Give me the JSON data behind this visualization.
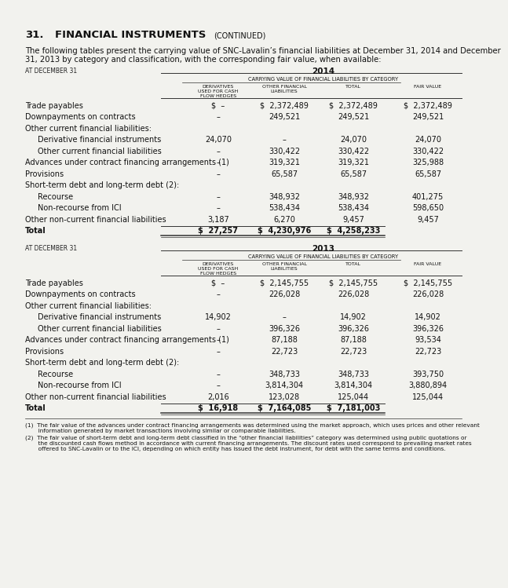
{
  "bg_color": "#f2f2ee",
  "title_num": "31.",
  "title_main": "FINANCIAL INSTRUMENTS",
  "title_sub": "(CONTINUED)",
  "intro_line1": "The following tables present the carrying value of SNC-Lavalin’s financial liabilities at December 31, 2014 and December",
  "intro_line2": "31, 2013 by category and classification, with the corresponding fair value, when available:",
  "table2014": {
    "year_label": "2014",
    "at_label": "AT DECEMBER 31",
    "carrying_label": "CARRYING VALUE OF FINANCIAL LIABILITIES BY CATEGORY",
    "col1_label": "DERIVATIVES\nUSED FOR CASH\nFLOW HEDGES",
    "col2_label": "OTHER FINANCIAL\nLIABILITIES",
    "col3_label": "TOTAL",
    "col4_label": "FAIR VALUE",
    "rows": [
      {
        "label": "Trade payables",
        "indent": 0,
        "c1": "$  –",
        "c2": "$  2,372,489",
        "c3": "$  2,372,489",
        "c4": "$  2,372,489",
        "bold": false
      },
      {
        "label": "Downpayments on contracts",
        "indent": 0,
        "c1": "–",
        "c2": "249,521",
        "c3": "249,521",
        "c4": "249,521",
        "bold": false
      },
      {
        "label": "Other current financial liabilities:",
        "indent": 0,
        "c1": "",
        "c2": "",
        "c3": "",
        "c4": "",
        "bold": false
      },
      {
        "label": "Derivative financial instruments",
        "indent": 1,
        "c1": "24,070",
        "c2": "–",
        "c3": "24,070",
        "c4": "24,070",
        "bold": false
      },
      {
        "label": "Other current financial liabilities",
        "indent": 1,
        "c1": "–",
        "c2": "330,422",
        "c3": "330,422",
        "c4": "330,422",
        "bold": false
      },
      {
        "label": "Advances under contract financing arrangements (1)",
        "indent": 0,
        "c1": "–",
        "c2": "319,321",
        "c3": "319,321",
        "c4": "325,988",
        "bold": false
      },
      {
        "label": "Provisions",
        "indent": 0,
        "c1": "–",
        "c2": "65,587",
        "c3": "65,587",
        "c4": "65,587",
        "bold": false
      },
      {
        "label": "Short-term debt and long-term debt (2):",
        "indent": 0,
        "c1": "",
        "c2": "",
        "c3": "",
        "c4": "",
        "bold": false
      },
      {
        "label": "Recourse",
        "indent": 1,
        "c1": "–",
        "c2": "348,932",
        "c3": "348,932",
        "c4": "401,275",
        "bold": false
      },
      {
        "label": "Non-recourse from ICI",
        "indent": 1,
        "c1": "–",
        "c2": "538,434",
        "c3": "538,434",
        "c4": "598,650",
        "bold": false
      },
      {
        "label": "Other non-current financial liabilities",
        "indent": 0,
        "c1": "3,187",
        "c2": "6,270",
        "c3": "9,457",
        "c4": "9,457",
        "bold": false
      },
      {
        "label": "Total",
        "indent": 0,
        "c1": "$  27,257",
        "c2": "$  4,230,976",
        "c3": "$  4,258,233",
        "c4": "",
        "bold": true
      }
    ]
  },
  "table2013": {
    "year_label": "2013",
    "at_label": "AT DECEMBER 31",
    "carrying_label": "CARRYING VALUE OF FINANCIAL LIABILITIES BY CATEGORY",
    "col1_label": "DERIVATIVES\nUSED FOR CASH\nFLOW HEDGES",
    "col2_label": "OTHER FINANCIAL\nLIABILITIES",
    "col3_label": "TOTAL",
    "col4_label": "FAIR VALUE",
    "rows": [
      {
        "label": "Trade payables",
        "indent": 0,
        "c1": "$  –",
        "c2": "$  2,145,755",
        "c3": "$  2,145,755",
        "c4": "$  2,145,755",
        "bold": false
      },
      {
        "label": "Downpayments on contracts",
        "indent": 0,
        "c1": "–",
        "c2": "226,028",
        "c3": "226,028",
        "c4": "226,028",
        "bold": false
      },
      {
        "label": "Other current financial liabilities:",
        "indent": 0,
        "c1": "",
        "c2": "",
        "c3": "",
        "c4": "",
        "bold": false
      },
      {
        "label": "Derivative financial instruments",
        "indent": 1,
        "c1": "14,902",
        "c2": "–",
        "c3": "14,902",
        "c4": "14,902",
        "bold": false
      },
      {
        "label": "Other current financial liabilities",
        "indent": 1,
        "c1": "–",
        "c2": "396,326",
        "c3": "396,326",
        "c4": "396,326",
        "bold": false
      },
      {
        "label": "Advances under contract financing arrangements (1)",
        "indent": 0,
        "c1": "–",
        "c2": "87,188",
        "c3": "87,188",
        "c4": "93,534",
        "bold": false
      },
      {
        "label": "Provisions",
        "indent": 0,
        "c1": "–",
        "c2": "22,723",
        "c3": "22,723",
        "c4": "22,723",
        "bold": false
      },
      {
        "label": "Short-term debt and long-term debt (2):",
        "indent": 0,
        "c1": "",
        "c2": "",
        "c3": "",
        "c4": "",
        "bold": false
      },
      {
        "label": "Recourse",
        "indent": 1,
        "c1": "–",
        "c2": "348,733",
        "c3": "348,733",
        "c4": "393,750",
        "bold": false
      },
      {
        "label": "Non-recourse from ICI",
        "indent": 1,
        "c1": "–",
        "c2": "3,814,304",
        "c3": "3,814,304",
        "c4": "3,880,894",
        "bold": false
      },
      {
        "label": "Other non-current financial liabilities",
        "indent": 0,
        "c1": "2,016",
        "c2": "123,028",
        "c3": "125,044",
        "c4": "125,044",
        "bold": false
      },
      {
        "label": "Total",
        "indent": 0,
        "c1": "$  16,918",
        "c2": "$  7,164,085",
        "c3": "$  7,181,003",
        "c4": "",
        "bold": true
      }
    ]
  },
  "footnote1_super": "(1)",
  "footnote1_text": "  The fair value of the advances under contract financing arrangements was determined using the market approach, which uses prices and other relevant\n       information generated by market transactions involving similar or comparable liabilities.",
  "footnote2_super": "(2)",
  "footnote2_text": "  The fair value of short-term debt and long-term debt classified in the “other financial liabilities” category was determined using public quotations or\n       the discounted cash flows method in accordance with current financing arrangements. The discount rates used correspond to prevailing market rates\n       offered to SNC-Lavalin or to the ICI, depending on which entity has issued the debt instrument, for debt with the same terms and conditions."
}
